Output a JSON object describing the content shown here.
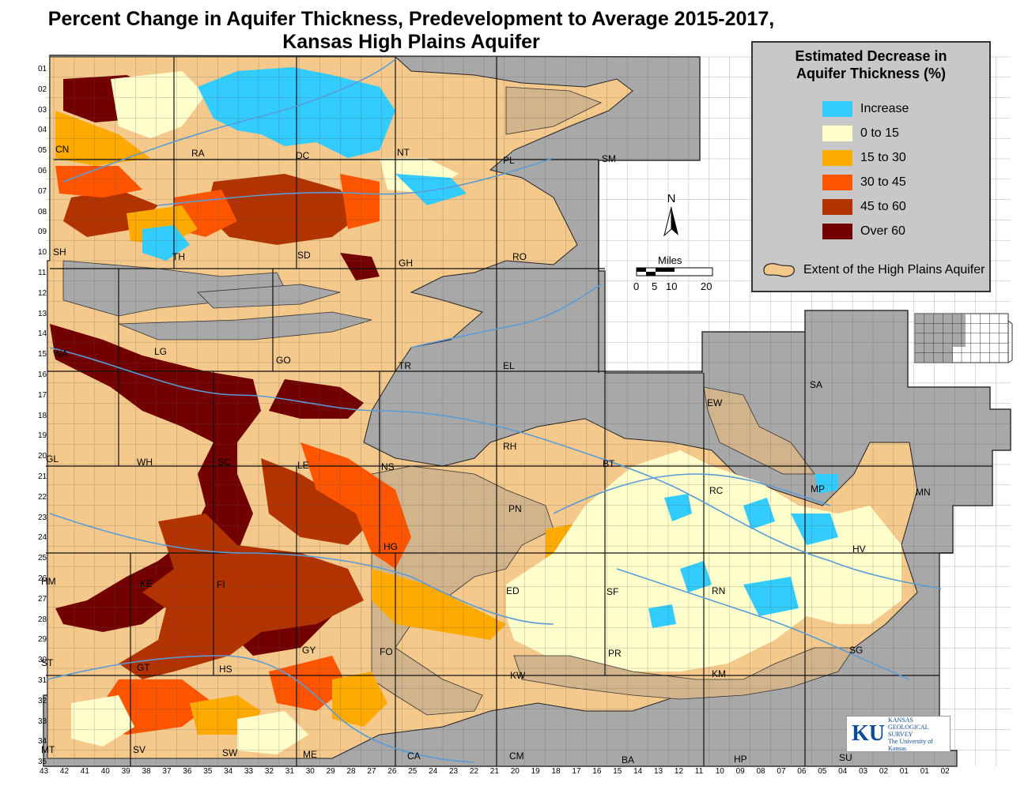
{
  "title": {
    "line1": "Percent Change in Aquifer Thickness, Predevelopment to Average 2015-2017,",
    "line2": "Kansas High Plains Aquifer"
  },
  "legend": {
    "title_line1": "Estimated Decrease in",
    "title_line2": "Aquifer Thickness (%)",
    "classes": [
      {
        "label": "Increase",
        "color": "#33ccff"
      },
      {
        "label": "0 to 15",
        "color": "#ffffcc"
      },
      {
        "label": "15 to 30",
        "color": "#ffaa00"
      },
      {
        "label": "30 to 45",
        "color": "#ff5500"
      },
      {
        "label": "45 to 60",
        "color": "#b33300"
      },
      {
        "label": "Over 60",
        "color": "#730000"
      }
    ],
    "extent_label": "Extent of the High Plains Aquifer",
    "extent_color": "#f5c98c"
  },
  "north": {
    "label": "N"
  },
  "scale": {
    "title": "Miles",
    "ticks": [
      "0",
      "5",
      "10",
      "20"
    ]
  },
  "logo": {
    "mark": "KU",
    "line1": "KANSAS",
    "line2": "GEOLOGICAL",
    "line3": "SURVEY",
    "line4": "The University of Kansas"
  },
  "counties": [
    {
      "code": "CN"
    },
    {
      "code": "RA"
    },
    {
      "code": "DC"
    },
    {
      "code": "NT"
    },
    {
      "code": "PL"
    },
    {
      "code": "SM"
    },
    {
      "code": "SH"
    },
    {
      "code": "TH"
    },
    {
      "code": "SD"
    },
    {
      "code": "GH"
    },
    {
      "code": "RO"
    },
    {
      "code": "WA"
    },
    {
      "code": "LG"
    },
    {
      "code": "GO"
    },
    {
      "code": "TR"
    },
    {
      "code": "EL"
    },
    {
      "code": "SA"
    },
    {
      "code": "EW"
    },
    {
      "code": "GL"
    },
    {
      "code": "WH"
    },
    {
      "code": "SC"
    },
    {
      "code": "LE"
    },
    {
      "code": "NS"
    },
    {
      "code": "RH"
    },
    {
      "code": "BT"
    },
    {
      "code": "RC"
    },
    {
      "code": "MP"
    },
    {
      "code": "MN"
    },
    {
      "code": "PN"
    },
    {
      "code": "HG"
    },
    {
      "code": "HV"
    },
    {
      "code": "HM"
    },
    {
      "code": "KE"
    },
    {
      "code": "FI"
    },
    {
      "code": "SF"
    },
    {
      "code": "ED"
    },
    {
      "code": "RN"
    },
    {
      "code": "GY"
    },
    {
      "code": "FO"
    },
    {
      "code": "PR"
    },
    {
      "code": "SG"
    },
    {
      "code": "ST"
    },
    {
      "code": "GT"
    },
    {
      "code": "HS"
    },
    {
      "code": "KW"
    },
    {
      "code": "KM"
    },
    {
      "code": "MT"
    },
    {
      "code": "SV"
    },
    {
      "code": "SW"
    },
    {
      "code": "ME"
    },
    {
      "code": "CA"
    },
    {
      "code": "CM"
    },
    {
      "code": "BA"
    },
    {
      "code": "HP"
    },
    {
      "code": "SU"
    }
  ],
  "township_rows": [
    "01",
    "02",
    "03",
    "04",
    "05",
    "06",
    "07",
    "08",
    "09",
    "10",
    "11",
    "12",
    "13",
    "14",
    "15",
    "16",
    "17",
    "18",
    "19",
    "20",
    "21",
    "22",
    "23",
    "24",
    "25",
    "26",
    "27",
    "28",
    "29",
    "30",
    "31",
    "32",
    "33",
    "34",
    "35"
  ],
  "range_cols": [
    "43",
    "42",
    "41",
    "40",
    "39",
    "38",
    "37",
    "36",
    "35",
    "34",
    "33",
    "32",
    "31",
    "30",
    "29",
    "28",
    "27",
    "26",
    "25",
    "24",
    "23",
    "22",
    "21",
    "20",
    "19",
    "18",
    "17",
    "16",
    "15",
    "14",
    "13",
    "12",
    "11",
    "10",
    "09",
    "08",
    "07",
    "06",
    "05",
    "04",
    "03",
    "02",
    "01",
    "01",
    "02"
  ]
}
